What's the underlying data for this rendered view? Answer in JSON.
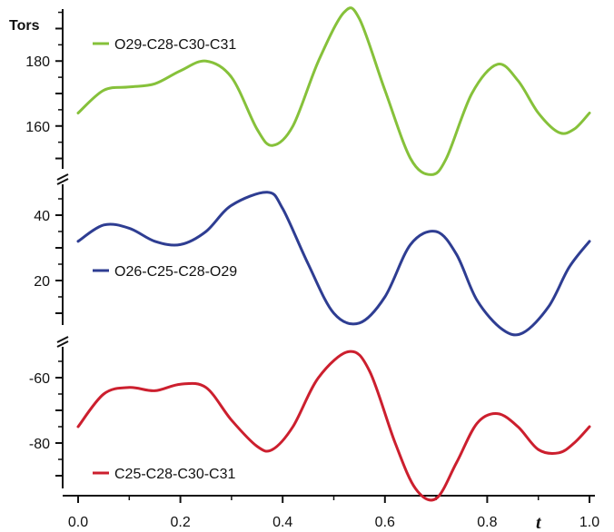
{
  "chart_data": {
    "type": "line",
    "ylabel": "Tors",
    "xlabel": "t",
    "xlim": [
      0.0,
      1.0
    ],
    "x_ticks": [
      "0.0",
      "0.2",
      "0.4",
      "0.6",
      "0.8",
      "1.0"
    ],
    "x_tick_values": [
      0.0,
      0.2,
      0.4,
      0.6,
      0.8,
      1.0
    ],
    "grid": false,
    "legend_placement": "inline",
    "panels": [
      {
        "ylim": [
          144,
          196
        ],
        "y_ticks": [
          "180",
          "160"
        ],
        "y_tick_values": [
          180,
          160
        ],
        "series": [
          {
            "name": "O29-C28-C30-C31",
            "color": "#86c13a",
            "x": [
              0.0,
              0.05,
              0.1,
              0.15,
              0.2,
              0.25,
              0.3,
              0.35,
              0.38,
              0.42,
              0.47,
              0.52,
              0.55,
              0.6,
              0.65,
              0.69,
              0.72,
              0.77,
              0.82,
              0.86,
              0.9,
              0.94,
              0.97,
              1.0
            ],
            "y": [
              164,
              171,
              172,
              173,
              177,
              180,
              175,
              159,
              154,
              160,
              180,
              195,
              193,
              171,
              150,
              145,
              150,
              170,
              179,
              174,
              164,
              158,
              159,
              164
            ]
          }
        ]
      },
      {
        "ylim": [
          0,
          50
        ],
        "y_ticks": [
          "40",
          "20"
        ],
        "y_tick_values": [
          40,
          20
        ],
        "series": [
          {
            "name": "O26-C25-C28-O29",
            "color": "#2e3d92",
            "x": [
              0.0,
              0.05,
              0.1,
              0.15,
              0.2,
              0.25,
              0.3,
              0.37,
              0.4,
              0.45,
              0.5,
              0.55,
              0.6,
              0.65,
              0.7,
              0.74,
              0.78,
              0.83,
              0.87,
              0.92,
              0.96,
              1.0
            ],
            "y": [
              32,
              37,
              36,
              32,
              31,
              35,
              43,
              47,
              42,
              25,
              10,
              7,
              15,
              31,
              35,
              28,
              14,
              5,
              4,
              12,
              24,
              32
            ]
          }
        ]
      },
      {
        "ylim": [
          -100,
          -50
        ],
        "y_ticks": [
          "-60",
          "-80"
        ],
        "y_tick_values": [
          -60,
          -80
        ],
        "series": [
          {
            "name": "C25-C28-C30-C31",
            "color": "#cc1f2e",
            "x": [
              0.0,
              0.05,
              0.1,
              0.15,
              0.2,
              0.25,
              0.3,
              0.35,
              0.38,
              0.42,
              0.47,
              0.53,
              0.57,
              0.62,
              0.66,
              0.7,
              0.74,
              0.78,
              0.82,
              0.86,
              0.9,
              0.94,
              0.97,
              1.0
            ],
            "y": [
              -75,
              -65,
              -63,
              -64,
              -62,
              -63,
              -73,
              -81,
              -82,
              -75,
              -60,
              -52,
              -58,
              -80,
              -94,
              -97,
              -86,
              -74,
              -71,
              -75,
              -82,
              -83,
              -80,
              -75
            ]
          }
        ]
      }
    ]
  }
}
